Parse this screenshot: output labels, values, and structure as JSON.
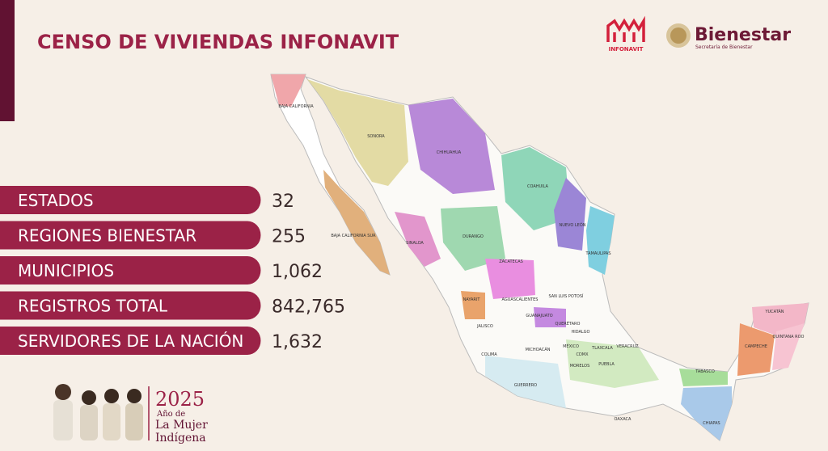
{
  "header": {
    "title": "CENSO DE VIVIENDAS INFONAVIT"
  },
  "logos": {
    "infonavit": "INFONAVIT",
    "bienestar": "Bienestar",
    "bienestar_sub": "Secretaría de Bienestar"
  },
  "stats": [
    {
      "label": "ESTADOS",
      "value": "32"
    },
    {
      "label": "REGIONES BIENESTAR",
      "value": "255"
    },
    {
      "label": "MUNICIPIOS",
      "value": "1,062"
    },
    {
      "label": "REGISTROS TOTAL",
      "value": "842,765"
    },
    {
      "label": "SERVIDORES DE LA NACIÓN",
      "value": "1,632"
    }
  ],
  "map": {
    "labels": [
      "BAJA CALIFORNIA",
      "SONORA",
      "CHIHUAHUA",
      "COAHUILA",
      "NUEVO LEÓN",
      "TAMAULIPAS",
      "SINALOA",
      "DURANGO",
      "BAJA CALIFORNIA SUR",
      "ZACATECAS",
      "SAN LUIS POTOSÍ",
      "NAYARIT",
      "AGUASCALIENTES",
      "JALISCO",
      "GUANAJUATO",
      "QUERÉTARO",
      "HIDALGO",
      "COLIMA",
      "MICHOACÁN",
      "MÉXICO",
      "CDMX",
      "TLAXCALA",
      "VERACRUZ",
      "MORELOS",
      "PUEBLA",
      "GUERRERO",
      "OAXACA",
      "TABASCO",
      "CHIAPAS",
      "CAMPECHE",
      "YUCATÁN",
      "QUINTANA ROO"
    ]
  },
  "footer": {
    "year": "2025",
    "line1": "Año de",
    "line2": "La Mujer",
    "line3": "Indígena"
  }
}
